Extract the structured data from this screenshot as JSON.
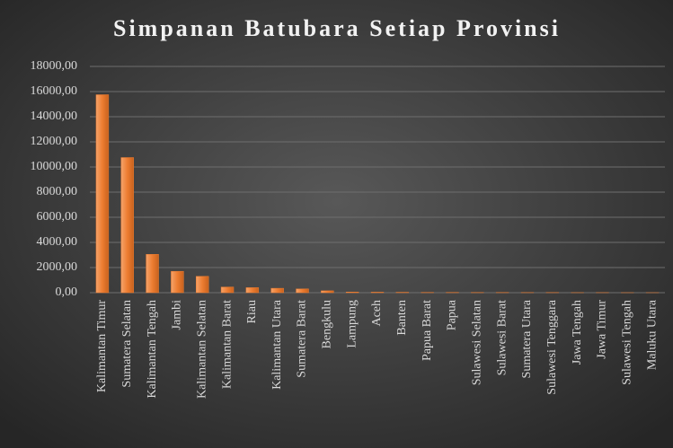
{
  "chart_data": {
    "type": "bar",
    "title": "Simpanan Batubara Setiap Provinsi",
    "categories": [
      "Kalimantan Timur",
      "Sumatera Selatan",
      "Kalimantan Tengah",
      "Jambi",
      "Kalimantan Selatan",
      "Kalimantan Barat",
      "Riau",
      "Kalimantan Utara",
      "Sumatera Barat",
      "Bengkulu",
      "Lampung",
      "Aceh",
      "Banten",
      "Papua Barat",
      "Papua",
      "Sulawesi Selatan",
      "Sulawesi Barat",
      "Sumatera Utara",
      "Sulawesi Tenggara",
      "Jawa Tengah",
      "Jawa Timur",
      "Sulawesi Tengah",
      "Maluku Utara"
    ],
    "values": [
      15750,
      10750,
      3050,
      1700,
      1300,
      450,
      400,
      350,
      300,
      150,
      50,
      40,
      30,
      20,
      20,
      15,
      15,
      10,
      10,
      5,
      5,
      2,
      2
    ],
    "color": "#ed7d31",
    "ylim": [
      0,
      18000
    ],
    "yticks": [
      {
        "value": 0,
        "label": "0,00"
      },
      {
        "value": 2000,
        "label": "2000,00"
      },
      {
        "value": 4000,
        "label": "4000,00"
      },
      {
        "value": 6000,
        "label": "6000,00"
      },
      {
        "value": 8000,
        "label": "8000,00"
      },
      {
        "value": 10000,
        "label": "10000,00"
      },
      {
        "value": 12000,
        "label": "12000,00"
      },
      {
        "value": 14000,
        "label": "14000,00"
      },
      {
        "value": 16000,
        "label": "16000,00"
      },
      {
        "value": 18000,
        "label": "18000,00"
      }
    ],
    "grid": true
  }
}
